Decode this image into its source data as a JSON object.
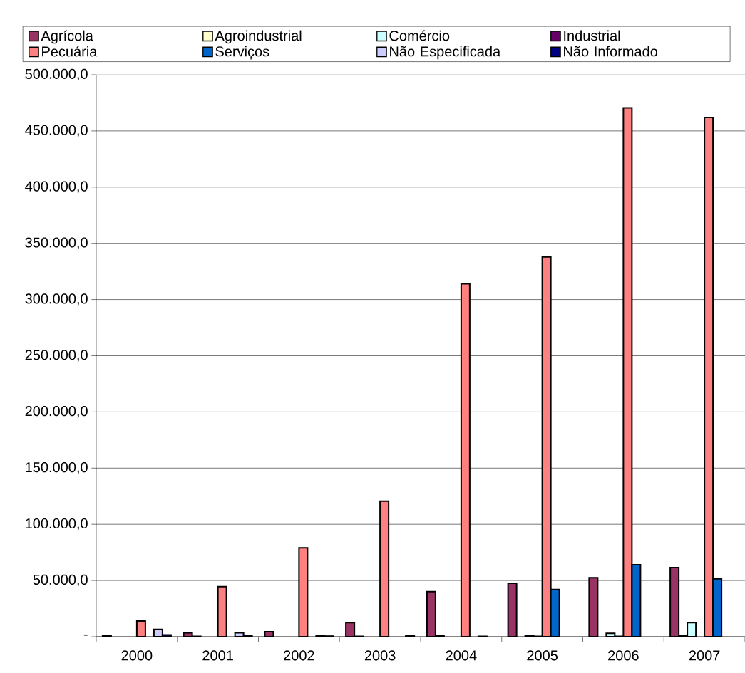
{
  "chart_data": {
    "type": "bar",
    "categories": [
      "2000",
      "2001",
      "2002",
      "2003",
      "2004",
      "2005",
      "2006",
      "2007"
    ],
    "series": [
      {
        "name": "Agrícola",
        "color": "#993366",
        "values": [
          1000,
          3500,
          4500,
          12500,
          40000,
          47500,
          52500,
          61500
        ]
      },
      {
        "name": "Agroindustrial",
        "color": "#ffffcc",
        "values": [
          null,
          300,
          null,
          300,
          1000,
          null,
          null,
          1200
        ]
      },
      {
        "name": "Comércio",
        "color": "#ccffff",
        "values": [
          null,
          null,
          null,
          null,
          null,
          1000,
          3000,
          12500
        ]
      },
      {
        "name": "Industrial",
        "color": "#660066",
        "values": [
          null,
          null,
          null,
          null,
          null,
          300,
          300,
          null
        ]
      },
      {
        "name": "Pecuária",
        "color": "#ff8080",
        "values": [
          14000,
          44500,
          79000,
          120500,
          314000,
          338000,
          470500,
          462000
        ]
      },
      {
        "name": "Serviços",
        "color": "#0066cc",
        "values": [
          null,
          null,
          null,
          null,
          null,
          42000,
          64000,
          51500
        ]
      },
      {
        "name": "Não Especificada",
        "color": "#ccccff",
        "values": [
          6500,
          3500,
          800,
          null,
          300,
          null,
          null,
          null
        ]
      },
      {
        "name": "Não Informado",
        "color": "#000080",
        "values": [
          1500,
          1200,
          500,
          700,
          null,
          null,
          null,
          null
        ]
      }
    ],
    "ylim": [
      0,
      500000
    ],
    "yticks": [
      {
        "value": 0,
        "label": "-"
      },
      {
        "value": 50000,
        "label": "50.000,0"
      },
      {
        "value": 100000,
        "label": "100.000,0"
      },
      {
        "value": 150000,
        "label": "150.000,0"
      },
      {
        "value": 200000,
        "label": "200.000,0"
      },
      {
        "value": 250000,
        "label": "250.000,0"
      },
      {
        "value": 300000,
        "label": "300.000,0"
      },
      {
        "value": 350000,
        "label": "350.000,0"
      },
      {
        "value": 400000,
        "label": "400.000,0"
      },
      {
        "value": 450000,
        "label": "450.000,0"
      },
      {
        "value": 500000,
        "label": "500.000,0"
      }
    ],
    "grid": "y",
    "legend": "top"
  }
}
